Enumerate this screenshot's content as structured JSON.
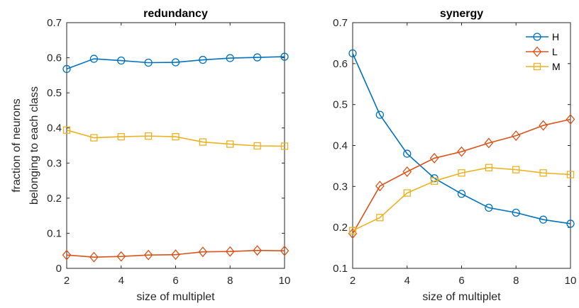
{
  "chart_data": [
    {
      "type": "line",
      "title": "redundancy",
      "xlabel": "size of multiplet",
      "ylabel": [
        "fraction of neurons",
        "belonging to each class"
      ],
      "x": [
        2,
        3,
        4,
        5,
        6,
        7,
        8,
        9,
        10
      ],
      "xlim": [
        2,
        10
      ],
      "ylim": [
        0,
        0.7
      ],
      "xticks": [
        "2",
        "4",
        "6",
        "8",
        "10"
      ],
      "yticks": [
        "0",
        "0.1",
        "0.2",
        "0.3",
        "0.4",
        "0.5",
        "0.6",
        "0.7"
      ],
      "grid": false,
      "legend": null,
      "series": [
        {
          "name": "H",
          "color": "#0072BD",
          "marker": "circle",
          "values": [
            0.568,
            0.597,
            0.592,
            0.586,
            0.587,
            0.594,
            0.599,
            0.601,
            0.603
          ]
        },
        {
          "name": "L",
          "color": "#D95319",
          "marker": "diamond",
          "values": [
            0.038,
            0.032,
            0.034,
            0.038,
            0.039,
            0.047,
            0.048,
            0.051,
            0.05
          ]
        },
        {
          "name": "M",
          "color": "#EDB120",
          "marker": "square",
          "values": [
            0.394,
            0.372,
            0.375,
            0.377,
            0.375,
            0.36,
            0.354,
            0.349,
            0.348
          ]
        }
      ]
    },
    {
      "type": "line",
      "title": "synergy",
      "xlabel": "size of multiplet",
      "ylabel": "",
      "x": [
        2,
        3,
        4,
        5,
        6,
        7,
        8,
        9,
        10
      ],
      "xlim": [
        2,
        10
      ],
      "ylim": [
        0.1,
        0.7
      ],
      "xticks": [
        "2",
        "4",
        "6",
        "8",
        "10"
      ],
      "yticks": [
        "0.1",
        "0.2",
        "0.3",
        "0.4",
        "0.5",
        "0.6",
        "0.7"
      ],
      "grid": false,
      "legend": "top-right",
      "series": [
        {
          "name": "H",
          "color": "#0072BD",
          "marker": "circle",
          "values": [
            0.625,
            0.475,
            0.38,
            0.32,
            0.282,
            0.248,
            0.236,
            0.219,
            0.209
          ]
        },
        {
          "name": "L",
          "color": "#D95319",
          "marker": "diamond",
          "values": [
            0.185,
            0.301,
            0.336,
            0.369,
            0.385,
            0.406,
            0.424,
            0.449,
            0.464
          ]
        },
        {
          "name": "M",
          "color": "#EDB120",
          "marker": "square",
          "values": [
            0.192,
            0.224,
            0.284,
            0.313,
            0.333,
            0.346,
            0.341,
            0.333,
            0.329
          ]
        }
      ]
    }
  ]
}
